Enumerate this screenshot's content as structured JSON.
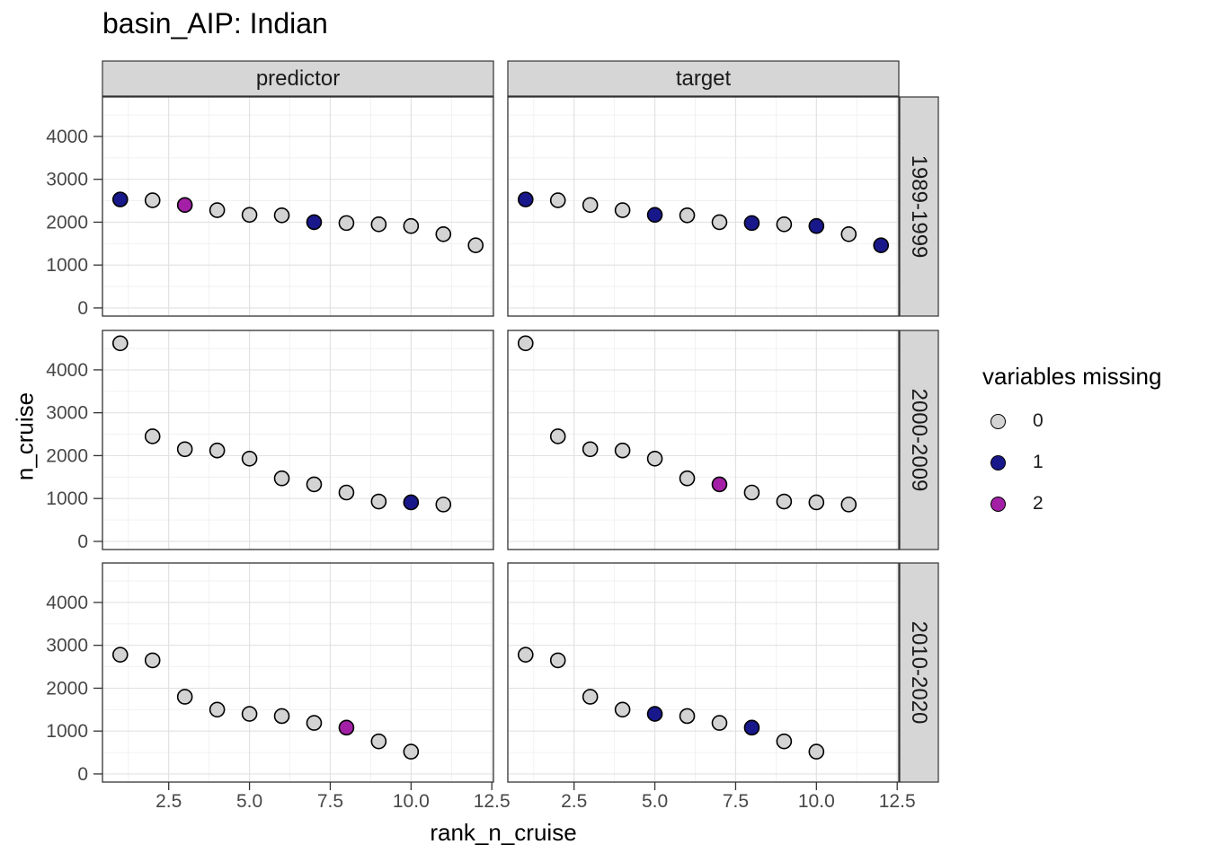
{
  "chart_data": {
    "type": "scatter",
    "title": "basin_AIP: Indian",
    "xlabel": "rank_n_cruise",
    "ylabel": "n_cruise",
    "facet_cols": [
      "predictor",
      "target"
    ],
    "facet_rows": [
      "1989-1999",
      "2000-2009",
      "2010-2020"
    ],
    "xlim": [
      0.45,
      12.55
    ],
    "ylim": [
      -190,
      4920
    ],
    "x_ticks": [
      2.5,
      5.0,
      7.5,
      10.0,
      12.5
    ],
    "x_tick_labels": [
      "2.5",
      "5.0",
      "7.5",
      "10.0",
      "12.5"
    ],
    "x_minor_ticks": [
      1.25,
      3.75,
      6.25,
      8.75,
      11.25
    ],
    "y_ticks": [
      0,
      1000,
      2000,
      3000,
      4000
    ],
    "y_tick_labels": [
      "0",
      "1000",
      "2000",
      "3000",
      "4000"
    ],
    "y_minor_ticks": [
      500,
      1500,
      2500,
      3500,
      4500
    ],
    "grid": true,
    "legend": {
      "title": "variables missing",
      "position": "right",
      "entries": [
        {
          "label": "0",
          "color": "#d3d3d3"
        },
        {
          "label": "1",
          "color": "#19188b"
        },
        {
          "label": "2",
          "color": "#a320a6"
        }
      ]
    },
    "point_stroke": "#000000",
    "panels": [
      {
        "col": "predictor",
        "row": "1989-1999",
        "points": [
          {
            "x": 1,
            "y": 2530,
            "miss": 1
          },
          {
            "x": 2,
            "y": 2510,
            "miss": 0
          },
          {
            "x": 3,
            "y": 2400,
            "miss": 2
          },
          {
            "x": 4,
            "y": 2280,
            "miss": 0
          },
          {
            "x": 5,
            "y": 2170,
            "miss": 0
          },
          {
            "x": 6,
            "y": 2160,
            "miss": 0
          },
          {
            "x": 7,
            "y": 2000,
            "miss": 1
          },
          {
            "x": 8,
            "y": 1980,
            "miss": 0
          },
          {
            "x": 9,
            "y": 1950,
            "miss": 0
          },
          {
            "x": 10,
            "y": 1910,
            "miss": 0
          },
          {
            "x": 11,
            "y": 1720,
            "miss": 0
          },
          {
            "x": 12,
            "y": 1460,
            "miss": 0
          }
        ]
      },
      {
        "col": "target",
        "row": "1989-1999",
        "points": [
          {
            "x": 1,
            "y": 2530,
            "miss": 1
          },
          {
            "x": 2,
            "y": 2510,
            "miss": 0
          },
          {
            "x": 3,
            "y": 2400,
            "miss": 0
          },
          {
            "x": 4,
            "y": 2280,
            "miss": 0
          },
          {
            "x": 5,
            "y": 2170,
            "miss": 1
          },
          {
            "x": 6,
            "y": 2160,
            "miss": 0
          },
          {
            "x": 7,
            "y": 2000,
            "miss": 0
          },
          {
            "x": 8,
            "y": 1980,
            "miss": 1
          },
          {
            "x": 9,
            "y": 1950,
            "miss": 0
          },
          {
            "x": 10,
            "y": 1910,
            "miss": 1
          },
          {
            "x": 11,
            "y": 1720,
            "miss": 0
          },
          {
            "x": 12,
            "y": 1460,
            "miss": 1
          }
        ]
      },
      {
        "col": "predictor",
        "row": "2000-2009",
        "points": [
          {
            "x": 1,
            "y": 4620,
            "miss": 0
          },
          {
            "x": 2,
            "y": 2450,
            "miss": 0
          },
          {
            "x": 3,
            "y": 2150,
            "miss": 0
          },
          {
            "x": 4,
            "y": 2120,
            "miss": 0
          },
          {
            "x": 5,
            "y": 1930,
            "miss": 0
          },
          {
            "x": 6,
            "y": 1470,
            "miss": 0
          },
          {
            "x": 7,
            "y": 1330,
            "miss": 0
          },
          {
            "x": 8,
            "y": 1140,
            "miss": 0
          },
          {
            "x": 9,
            "y": 930,
            "miss": 0
          },
          {
            "x": 10,
            "y": 910,
            "miss": 1
          },
          {
            "x": 11,
            "y": 860,
            "miss": 0
          }
        ]
      },
      {
        "col": "target",
        "row": "2000-2009",
        "points": [
          {
            "x": 1,
            "y": 4620,
            "miss": 0
          },
          {
            "x": 2,
            "y": 2450,
            "miss": 0
          },
          {
            "x": 3,
            "y": 2150,
            "miss": 0
          },
          {
            "x": 4,
            "y": 2120,
            "miss": 0
          },
          {
            "x": 5,
            "y": 1930,
            "miss": 0
          },
          {
            "x": 6,
            "y": 1470,
            "miss": 0
          },
          {
            "x": 7,
            "y": 1330,
            "miss": 2
          },
          {
            "x": 8,
            "y": 1140,
            "miss": 0
          },
          {
            "x": 9,
            "y": 930,
            "miss": 0
          },
          {
            "x": 10,
            "y": 910,
            "miss": 0
          },
          {
            "x": 11,
            "y": 860,
            "miss": 0
          }
        ]
      },
      {
        "col": "predictor",
        "row": "2010-2020",
        "points": [
          {
            "x": 1,
            "y": 2780,
            "miss": 0
          },
          {
            "x": 2,
            "y": 2650,
            "miss": 0
          },
          {
            "x": 3,
            "y": 1800,
            "miss": 0
          },
          {
            "x": 4,
            "y": 1500,
            "miss": 0
          },
          {
            "x": 5,
            "y": 1400,
            "miss": 0
          },
          {
            "x": 6,
            "y": 1350,
            "miss": 0
          },
          {
            "x": 7,
            "y": 1190,
            "miss": 0
          },
          {
            "x": 8,
            "y": 1080,
            "miss": 2
          },
          {
            "x": 9,
            "y": 760,
            "miss": 0
          },
          {
            "x": 10,
            "y": 520,
            "miss": 0
          }
        ]
      },
      {
        "col": "target",
        "row": "2010-2020",
        "points": [
          {
            "x": 1,
            "y": 2780,
            "miss": 0
          },
          {
            "x": 2,
            "y": 2650,
            "miss": 0
          },
          {
            "x": 3,
            "y": 1800,
            "miss": 0
          },
          {
            "x": 4,
            "y": 1500,
            "miss": 0
          },
          {
            "x": 5,
            "y": 1400,
            "miss": 1
          },
          {
            "x": 6,
            "y": 1350,
            "miss": 0
          },
          {
            "x": 7,
            "y": 1190,
            "miss": 0
          },
          {
            "x": 8,
            "y": 1080,
            "miss": 1
          },
          {
            "x": 9,
            "y": 760,
            "miss": 0
          },
          {
            "x": 10,
            "y": 520,
            "miss": 0
          }
        ]
      }
    ]
  }
}
